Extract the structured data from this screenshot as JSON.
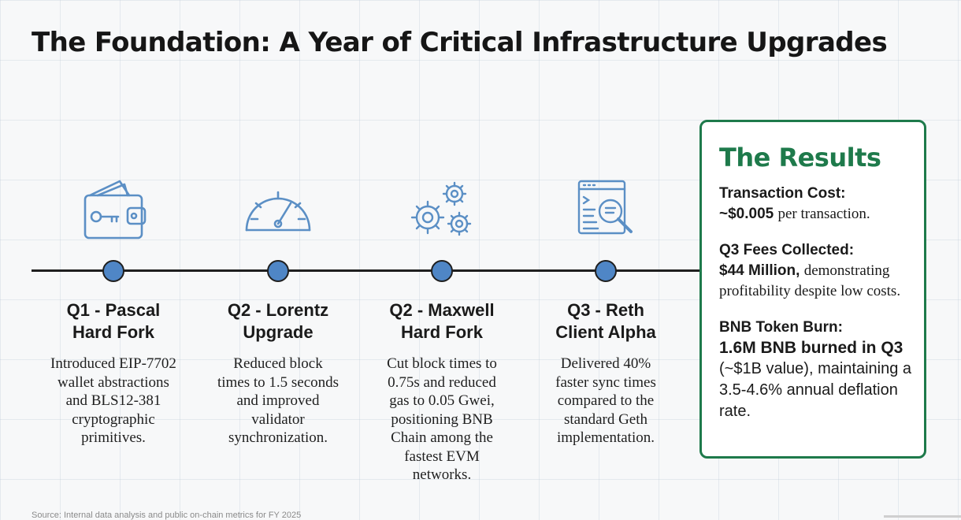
{
  "title": "The Foundation: A Year of Critical Infrastructure Upgrades",
  "timeline": {
    "milestones": [
      {
        "icon": "wallet-key-icon",
        "title": "Q1 - Pascal\nHard Fork",
        "description": "Introduced EIP-7702\nwallet abstractions\nand BLS12-381\ncryptographic\nprimitives."
      },
      {
        "icon": "speedometer-icon",
        "title": "Q2 - Lorentz\nUpgrade",
        "description": "Reduced block\ntimes to 1.5 seconds\nand improved\nvalidator\nsynchronization."
      },
      {
        "icon": "gears-icon",
        "title": "Q2 - Maxwell\nHard Fork",
        "description": "Cut block times to\n0.75s and reduced\ngas to 0.05 Gwei,\npositioning BNB\nChain among the\nfastest EVM\nnetworks."
      },
      {
        "icon": "code-search-icon",
        "title": "Q3 - Reth\nClient Alpha",
        "description": "Delivered 40%\nfaster sync times\ncompared to the\nstandard Geth\nimplementation."
      }
    ]
  },
  "results": {
    "title": "The Results",
    "transaction_cost": {
      "label": "Transaction Cost:",
      "value": "~$0.005",
      "suffix": "per transaction."
    },
    "fees": {
      "label": "Q3 Fees Collected:",
      "value": "$44 Million,",
      "suffix": "demonstrating profitability despite low costs."
    },
    "burn": {
      "label": "BNB Token Burn:",
      "value": "1.6M BNB burned in Q3",
      "suffix": "(~$1B value), maintaining a 3.5-4.6% annual deflation rate."
    }
  },
  "source": "Source: Internal data analysis and public on-chain metrics for FY 2025",
  "colors": {
    "accent_green": "#1e7a4b",
    "dot_blue": "#4f86c6",
    "icon_blue": "#5b8fc5"
  }
}
